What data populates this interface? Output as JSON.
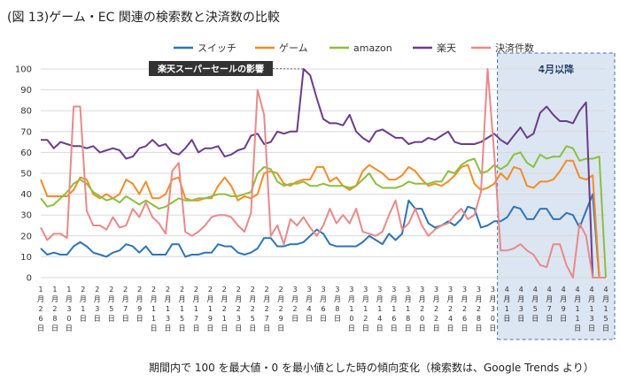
{
  "chart_data": {
    "type": "line",
    "title": "(図 13)ゲーム・EC 関連の検索数と決済数の比較",
    "footnote": "期間内で 100 を最大値・0 を最小値とした時の傾向変化（検索数は、Google Trends より）",
    "ylim": [
      0,
      100
    ],
    "yticks": [
      0,
      10,
      20,
      30,
      40,
      50,
      60,
      70,
      80,
      90,
      100
    ],
    "grid": true,
    "legend_position": "top",
    "highlight": {
      "label": "4月以降",
      "from_index": 70,
      "to_index": 87
    },
    "annotation": {
      "text": "楽天スーパーセールの影響",
      "at_index": 40,
      "series": "楽天"
    },
    "x_ticks": [
      "1月26日",
      "1月28日",
      "1月30日",
      "2月1日",
      "2月3日",
      "2月5日",
      "2月7日",
      "2月9日",
      "2月11日",
      "2月13日",
      "2月15日",
      "2月17日",
      "2月19日",
      "2月21日",
      "2月23日",
      "2月25日",
      "2月27日",
      "2月29日",
      "3月2日",
      "3月4日",
      "3月6日",
      "3月8日",
      "3月10日",
      "3月12日",
      "3月14日",
      "3月16日",
      "3月18日",
      "3月20日",
      "3月22日",
      "3月24日",
      "3月26日",
      "3月28日",
      "3月30日",
      "4月1日",
      "4月3日",
      "4月5日",
      "4月7日",
      "4月9日",
      "4月11日",
      "4月13日",
      "4月15日"
    ],
    "series": [
      {
        "name": "スイッチ",
        "color": "#2e75b6",
        "values": [
          14,
          11,
          12,
          11,
          11,
          15,
          17,
          15,
          12,
          11,
          10,
          12,
          13,
          16,
          15,
          12,
          15,
          11,
          11,
          11,
          16,
          16,
          10,
          11,
          11,
          12,
          12,
          16,
          15,
          15,
          12,
          11,
          12,
          14,
          19,
          19,
          15,
          15,
          16,
          16,
          17,
          20,
          23,
          21,
          16,
          15,
          15,
          15,
          15,
          17,
          20,
          18,
          16,
          21,
          18,
          21,
          37,
          33,
          33,
          26,
          24,
          25,
          27,
          25,
          28,
          34,
          33,
          24,
          25,
          27,
          27,
          29,
          34,
          33,
          28,
          28,
          33,
          33,
          28,
          28,
          31,
          30,
          24,
          32,
          40,
          0,
          0,
          0
        ]
      },
      {
        "name": "ゲーム",
        "color": "#f28c28",
        "values": [
          47,
          39,
          39,
          39,
          39,
          42,
          48,
          47,
          40,
          38,
          40,
          38,
          40,
          47,
          45,
          40,
          46,
          38,
          38,
          40,
          47,
          48,
          38,
          37,
          37,
          38,
          38,
          44,
          48,
          44,
          37,
          39,
          38,
          40,
          50,
          51,
          50,
          45,
          44,
          46,
          47,
          47,
          53,
          53,
          46,
          48,
          44,
          42,
          44,
          51,
          54,
          52,
          50,
          47,
          47,
          49,
          53,
          51,
          47,
          44,
          45,
          44,
          46,
          49,
          53,
          54,
          45,
          42,
          43,
          45,
          50,
          47,
          53,
          52,
          44,
          43,
          46,
          46,
          47,
          51,
          56,
          56,
          48,
          47,
          49,
          0,
          0,
          0
        ]
      },
      {
        "name": "amazon",
        "color": "#8cbf3f",
        "values": [
          38,
          34,
          35,
          38,
          41,
          45,
          47,
          45,
          41,
          39,
          37,
          38,
          36,
          39,
          37,
          35,
          37,
          35,
          33,
          34,
          36,
          38,
          37,
          37,
          38,
          38,
          39,
          40,
          40,
          39,
          39,
          40,
          41,
          50,
          53,
          52,
          46,
          44,
          45,
          45,
          46,
          44,
          44,
          45,
          44,
          44,
          44,
          43,
          44,
          47,
          50,
          45,
          43,
          43,
          43,
          44,
          46,
          45,
          45,
          45,
          46,
          46,
          51,
          50,
          54,
          56,
          57,
          50,
          51,
          54,
          52,
          54,
          59,
          60,
          55,
          53,
          59,
          57,
          58,
          58,
          63,
          62,
          56,
          57,
          57,
          58,
          0,
          0
        ]
      },
      {
        "name": "楽天",
        "color": "#6a3d8a",
        "values": [
          66,
          66,
          62,
          65,
          64,
          63,
          63,
          62,
          63,
          60,
          61,
          62,
          61,
          57,
          58,
          62,
          63,
          66,
          63,
          64,
          60,
          59,
          62,
          66,
          60,
          62,
          62,
          63,
          58,
          59,
          61,
          62,
          68,
          69,
          64,
          65,
          70,
          69,
          70,
          70,
          100,
          97,
          86,
          76,
          74,
          74,
          73,
          78,
          70,
          67,
          65,
          70,
          71,
          69,
          67,
          67,
          64,
          65,
          65,
          67,
          66,
          68,
          70,
          65,
          64,
          64,
          64,
          65,
          67,
          69,
          66,
          64,
          68,
          72,
          67,
          69,
          79,
          82,
          78,
          75,
          75,
          74,
          80,
          84,
          0,
          0,
          0,
          0
        ]
      },
      {
        "name": "決済件数",
        "color": "#e88a8a",
        "values": [
          24,
          18,
          21,
          21,
          19,
          82,
          82,
          32,
          25,
          25,
          23,
          29,
          24,
          25,
          33,
          29,
          36,
          29,
          26,
          21,
          51,
          55,
          22,
          20,
          22,
          25,
          29,
          30,
          30,
          29,
          25,
          22,
          31,
          90,
          78,
          20,
          25,
          16,
          28,
          25,
          29,
          24,
          20,
          25,
          33,
          26,
          30,
          26,
          33,
          22,
          21,
          20,
          22,
          30,
          37,
          23,
          26,
          33,
          25,
          20,
          23,
          25,
          26,
          30,
          33,
          28,
          30,
          41,
          100,
          60,
          13,
          13,
          14,
          16,
          13,
          11,
          6,
          5,
          16,
          16,
          6,
          0,
          26,
          20,
          0,
          0,
          0,
          0
        ]
      }
    ]
  }
}
